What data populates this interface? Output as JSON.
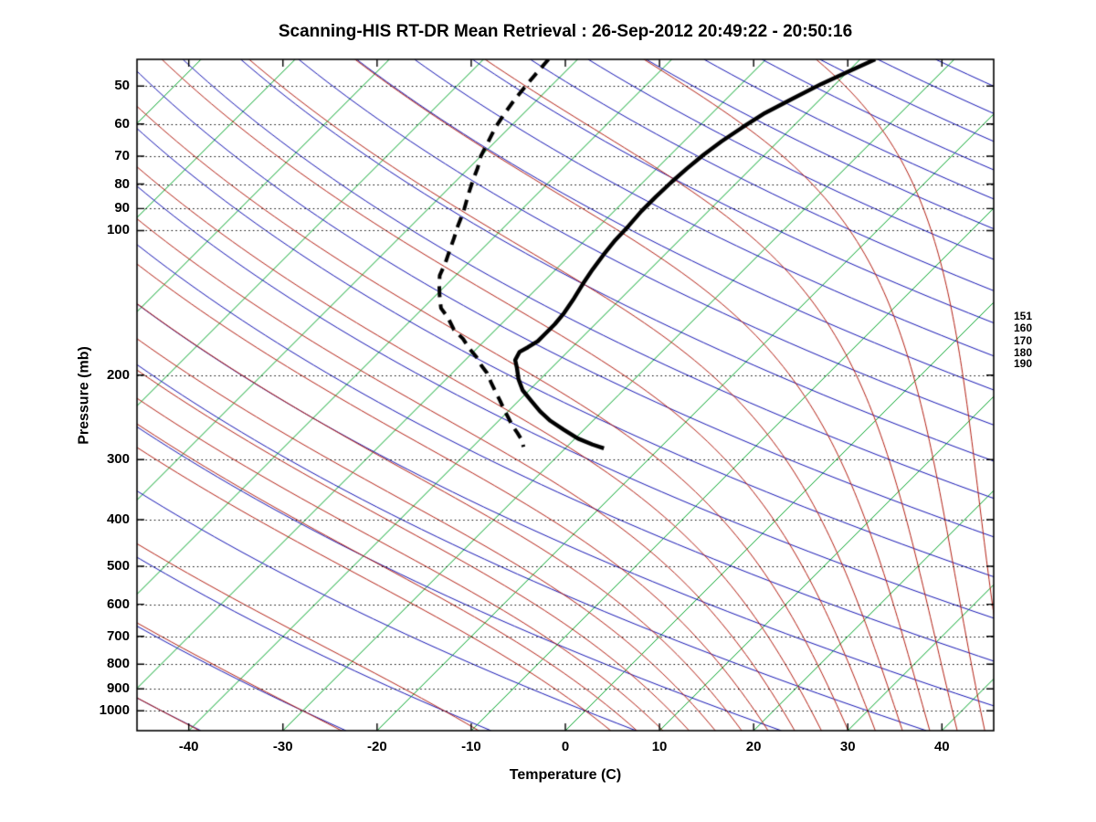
{
  "title": "Scanning-HIS RT-DR Mean Retrieval : 26-Sep-2012 20:49:22 - 20:50:16",
  "axes": {
    "x_label": "Temperature (C)",
    "y_label": "Pressure (mb)",
    "pressure_ticks": [
      50,
      60,
      70,
      80,
      90,
      100,
      200,
      300,
      400,
      500,
      600,
      700,
      800,
      900,
      1000
    ],
    "temperature_ticks": [
      -40,
      -30,
      -20,
      -10,
      0,
      10,
      20,
      30,
      40
    ],
    "right_pressure_labels": [
      151,
      160,
      170,
      180,
      190
    ]
  },
  "colors": {
    "isotherm": "#00A428",
    "dry_adiabat": "#1414B4",
    "moist_adiabat": "#B42014",
    "isobar": "#000000",
    "sounding": "#000000",
    "frame": "#000000",
    "background": "#FFFFFF"
  },
  "chart_data": {
    "type": "line",
    "diagram": "skew-t-log-p",
    "title": "Scanning-HIS RT-DR Mean Retrieval : 26-Sep-2012 20:49:22 - 20:50:16",
    "xlabel": "Temperature (C)",
    "ylabel": "Pressure (mb)",
    "x_axis_range_c": [
      -45.5,
      45.5
    ],
    "pressure_range_mb": [
      44,
      1100
    ],
    "grid": "dotted isobars at labeled pressures",
    "legend": "none",
    "isobars_mb": [
      50,
      60,
      70,
      80,
      90,
      100,
      200,
      300,
      400,
      500,
      600,
      700,
      800,
      900,
      1000
    ],
    "isotherms_c": {
      "start": -120,
      "end": 40,
      "step": 10
    },
    "dry_adiabats_theta_c": {
      "start": -60,
      "end": 330,
      "step": 15
    },
    "moist_adiabats_thetaw_c": [
      -60,
      -45,
      -30,
      -15,
      0,
      3,
      6,
      9,
      12,
      15,
      18,
      21,
      24,
      27,
      30,
      33,
      36,
      39,
      42,
      45
    ],
    "right_pressure_labels_mb": [
      151,
      160,
      170,
      180,
      190
    ],
    "series": [
      {
        "name": "temperature",
        "line": "solid",
        "points_p_t": [
          [
            44,
            -38.4
          ],
          [
            46.6,
            -39.9
          ],
          [
            49.5,
            -41.5
          ],
          [
            53.1,
            -43.0
          ],
          [
            56.9,
            -44.4
          ],
          [
            61.1,
            -45.3
          ],
          [
            65.2,
            -46.0
          ],
          [
            69.6,
            -46.5
          ],
          [
            74.3,
            -46.8
          ],
          [
            79.3,
            -47.0
          ],
          [
            85,
            -47.1
          ],
          [
            91,
            -47.1
          ],
          [
            97.7,
            -46.9
          ],
          [
            104.7,
            -46.8
          ],
          [
            112.3,
            -46.5
          ],
          [
            120.4,
            -46.1
          ],
          [
            129.1,
            -45.6
          ],
          [
            138.4,
            -45.0
          ],
          [
            148.4,
            -44.5
          ],
          [
            156.5,
            -44.3
          ],
          [
            163.5,
            -44.3
          ],
          [
            170,
            -44.3
          ],
          [
            175,
            -44.7
          ],
          [
            179,
            -45.1
          ],
          [
            186,
            -44.7
          ],
          [
            193,
            -43.7
          ],
          [
            204,
            -42.3
          ],
          [
            215,
            -40.7
          ],
          [
            226,
            -38.7
          ],
          [
            238,
            -36.6
          ],
          [
            249,
            -34.5
          ],
          [
            260,
            -32.1
          ],
          [
            271,
            -29.7
          ],
          [
            279,
            -27.5
          ],
          [
            284,
            -25.9
          ]
        ]
      },
      {
        "name": "dewpoint",
        "line": "dashed",
        "points_p_t": [
          [
            44,
            -73.1
          ],
          [
            47,
            -72.9
          ],
          [
            50,
            -72.7
          ],
          [
            53.5,
            -72.4
          ],
          [
            57.2,
            -72.0
          ],
          [
            61,
            -71.5
          ],
          [
            65,
            -70.8
          ],
          [
            70,
            -70.0
          ],
          [
            74,
            -69.1
          ],
          [
            79,
            -68.2
          ],
          [
            85,
            -67.1
          ],
          [
            91,
            -66.0
          ],
          [
            98,
            -65.0
          ],
          [
            104,
            -64.1
          ],
          [
            110,
            -63.3
          ],
          [
            117,
            -62.4
          ],
          [
            124,
            -61.7
          ],
          [
            130,
            -60.7
          ],
          [
            137,
            -59.5
          ],
          [
            145,
            -58.1
          ],
          [
            152,
            -56.3
          ],
          [
            161,
            -54.4
          ],
          [
            168,
            -52.5
          ],
          [
            176,
            -50.8
          ],
          [
            183,
            -49.2
          ],
          [
            191,
            -47.7
          ],
          [
            198,
            -46.3
          ],
          [
            207,
            -44.9
          ],
          [
            216,
            -43.5
          ],
          [
            226,
            -42.0
          ],
          [
            236,
            -40.6
          ],
          [
            246,
            -39.2
          ],
          [
            255,
            -38.0
          ],
          [
            264,
            -36.7
          ],
          [
            273,
            -35.5
          ],
          [
            282,
            -34.6
          ]
        ]
      }
    ]
  }
}
